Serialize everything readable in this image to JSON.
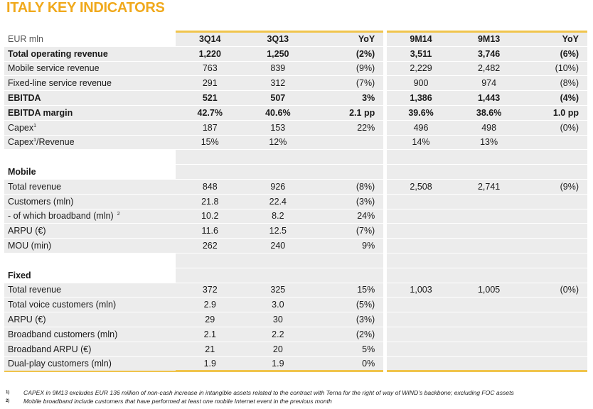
{
  "title": "ITALY KEY INDICATORS",
  "columns": {
    "unit": "EUR mln",
    "c1": "3Q14",
    "c2": "3Q13",
    "c3": "YoY",
    "c4": "9M14",
    "c5": "9M13",
    "c6": "YoY"
  },
  "rows": {
    "r1": {
      "label": "Total operating revenue",
      "c1": "1,220",
      "c2": "1,250",
      "c3": "(2%)",
      "c4": "3,511",
      "c5": "3,746",
      "c6": "(6%)"
    },
    "r2": {
      "label": "Mobile service revenue",
      "c1": "763",
      "c2": "839",
      "c3": "(9%)",
      "c4": "2,229",
      "c5": "2,482",
      "c6": "(10%)"
    },
    "r3": {
      "label": "Fixed-line service revenue",
      "c1": "291",
      "c2": "312",
      "c3": "(7%)",
      "c4": "900",
      "c5": "974",
      "c6": "(8%)"
    },
    "r4": {
      "label": "EBITDA",
      "c1": "521",
      "c2": "507",
      "c3": "3%",
      "c4": "1,386",
      "c5": "1,443",
      "c6": "(4%)"
    },
    "r5": {
      "label": "EBITDA margin",
      "c1": "42.7%",
      "c2": "40.6%",
      "c3": "2.1 pp",
      "c4": "39.6%",
      "c5": "38.6%",
      "c6": "1.0 pp"
    },
    "r6": {
      "label": "Capex",
      "sup": "1",
      "c1": "187",
      "c2": "153",
      "c3": "22%",
      "c4": "496",
      "c5": "498",
      "c6": "(0%)"
    },
    "r7": {
      "label_a": "Capex",
      "sup": "1",
      "label_b": "/Revenue",
      "c1": "15%",
      "c2": "12%",
      "c3": "",
      "c4": "14%",
      "c5": "13%",
      "c6": ""
    },
    "mobile_header": "Mobile",
    "m1": {
      "label": "Total revenue",
      "c1": "848",
      "c2": "926",
      "c3": "(8%)",
      "c4": "2,508",
      "c5": "2,741",
      "c6": "(9%)"
    },
    "m2": {
      "label": "Customers (mln)",
      "c1": "21.8",
      "c2": "22.4",
      "c3": "(3%)"
    },
    "m3": {
      "label": "- of which broadband (mln)",
      "sup": "2",
      "c1": "10.2",
      "c2": "8.2",
      "c3": "24%"
    },
    "m4": {
      "label": "ARPU (€)",
      "c1": "11.6",
      "c2": "12.5",
      "c3": "(7%)"
    },
    "m5": {
      "label": "MOU (min)",
      "c1": "262",
      "c2": "240",
      "c3": "9%"
    },
    "fixed_header": "Fixed",
    "f1": {
      "label": "Total revenue",
      "c1": "372",
      "c2": "325",
      "c3": "15%",
      "c4": "1,003",
      "c5": "1,005",
      "c6": "(0%)"
    },
    "f2": {
      "label": "Total voice customers (mln)",
      "c1": "2.9",
      "c2": "3.0",
      "c3": "(5%)"
    },
    "f3": {
      "label": "ARPU (€)",
      "c1": "29",
      "c2": "30",
      "c3": "(3%)"
    },
    "f4": {
      "label": "Broadband customers (mln)",
      "c1": "2.1",
      "c2": "2.2",
      "c3": "(2%)"
    },
    "f5": {
      "label": "Broadband ARPU (€)",
      "c1": "21",
      "c2": "20",
      "c3": "5%"
    },
    "f6": {
      "label": "Dual-play customers (mln)",
      "c1": "1.9",
      "c2": "1.9",
      "c3": "0%"
    }
  },
  "footnotes": {
    "n1_mark": "1)",
    "n1_text": "CAPEX in 9M13 excludes EUR 136 million of non-cash increase in intangible assets related to the contract with Terna for the right of way of WIND’s backbone; excluding FOC assets",
    "n2_mark": "2)",
    "n2_text": "Mobile broadband include customers that have performed at least one mobile Internet event in the previous month"
  },
  "colors": {
    "accent": "#f0a91c",
    "rule": "#f0c44c",
    "cell": "#ececec"
  }
}
